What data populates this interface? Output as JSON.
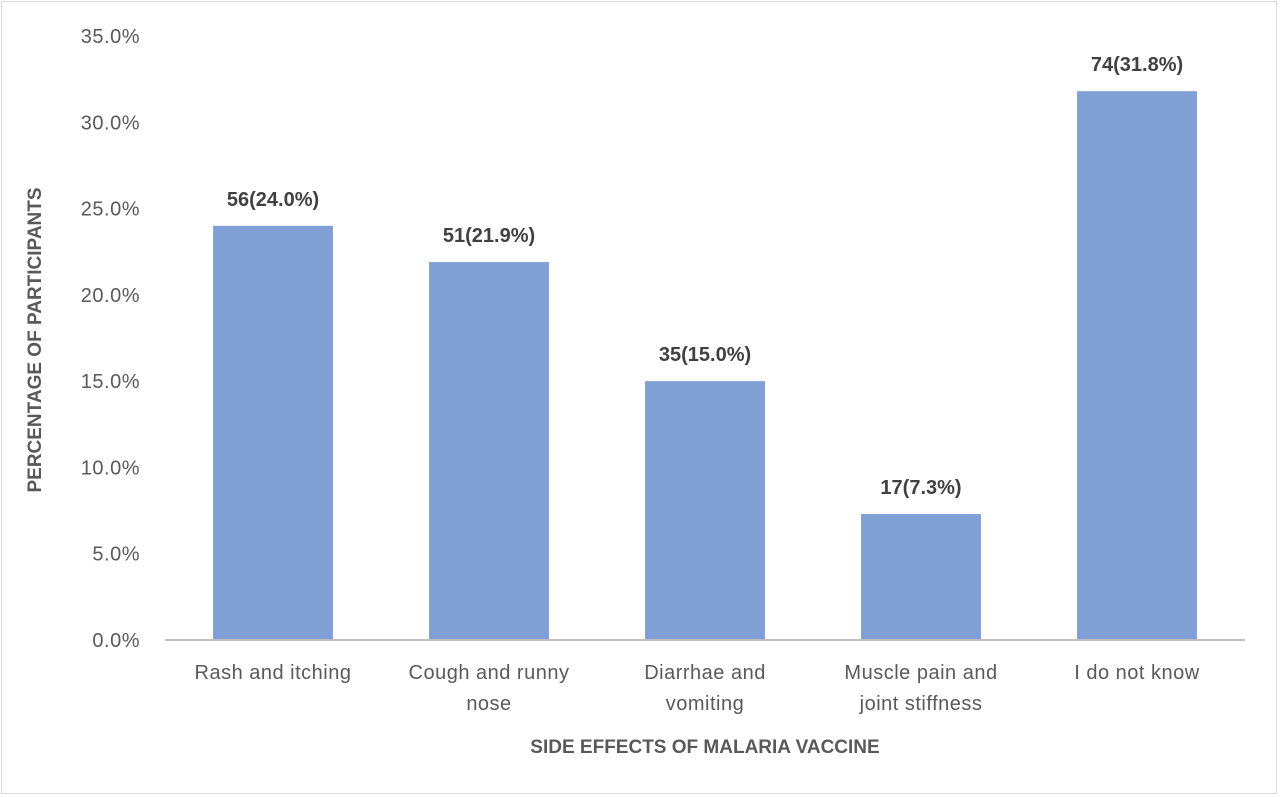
{
  "chart_data": {
    "type": "bar",
    "title": "",
    "xlabel": "SIDE EFFECTS OF MALARIA VACCINE",
    "ylabel": "PERCENTAGE OF PARTICIPANTS",
    "ylim": [
      0,
      35
    ],
    "yticks": [
      "0.0%",
      "5.0%",
      "10.0%",
      "15.0%",
      "20.0%",
      "25.0%",
      "30.0%",
      "35.0%"
    ],
    "ytick_values": [
      0,
      5,
      10,
      15,
      20,
      25,
      30,
      35
    ],
    "grid": false,
    "legend": "none",
    "bar_color": "#7f9fd5",
    "categories": [
      [
        "Rash and itching"
      ],
      [
        "Cough and runny",
        "nose"
      ],
      [
        "Diarrhae and",
        "vomiting"
      ],
      [
        "Muscle pain and",
        "joint stiffness"
      ],
      [
        "I do not know"
      ]
    ],
    "values": [
      24.0,
      21.9,
      15.0,
      7.3,
      31.8
    ],
    "data_labels": [
      "56(24.0%)",
      "51(21.9%)",
      "35(15.0%)",
      "17(7.3%)",
      "74(31.8%)"
    ]
  }
}
